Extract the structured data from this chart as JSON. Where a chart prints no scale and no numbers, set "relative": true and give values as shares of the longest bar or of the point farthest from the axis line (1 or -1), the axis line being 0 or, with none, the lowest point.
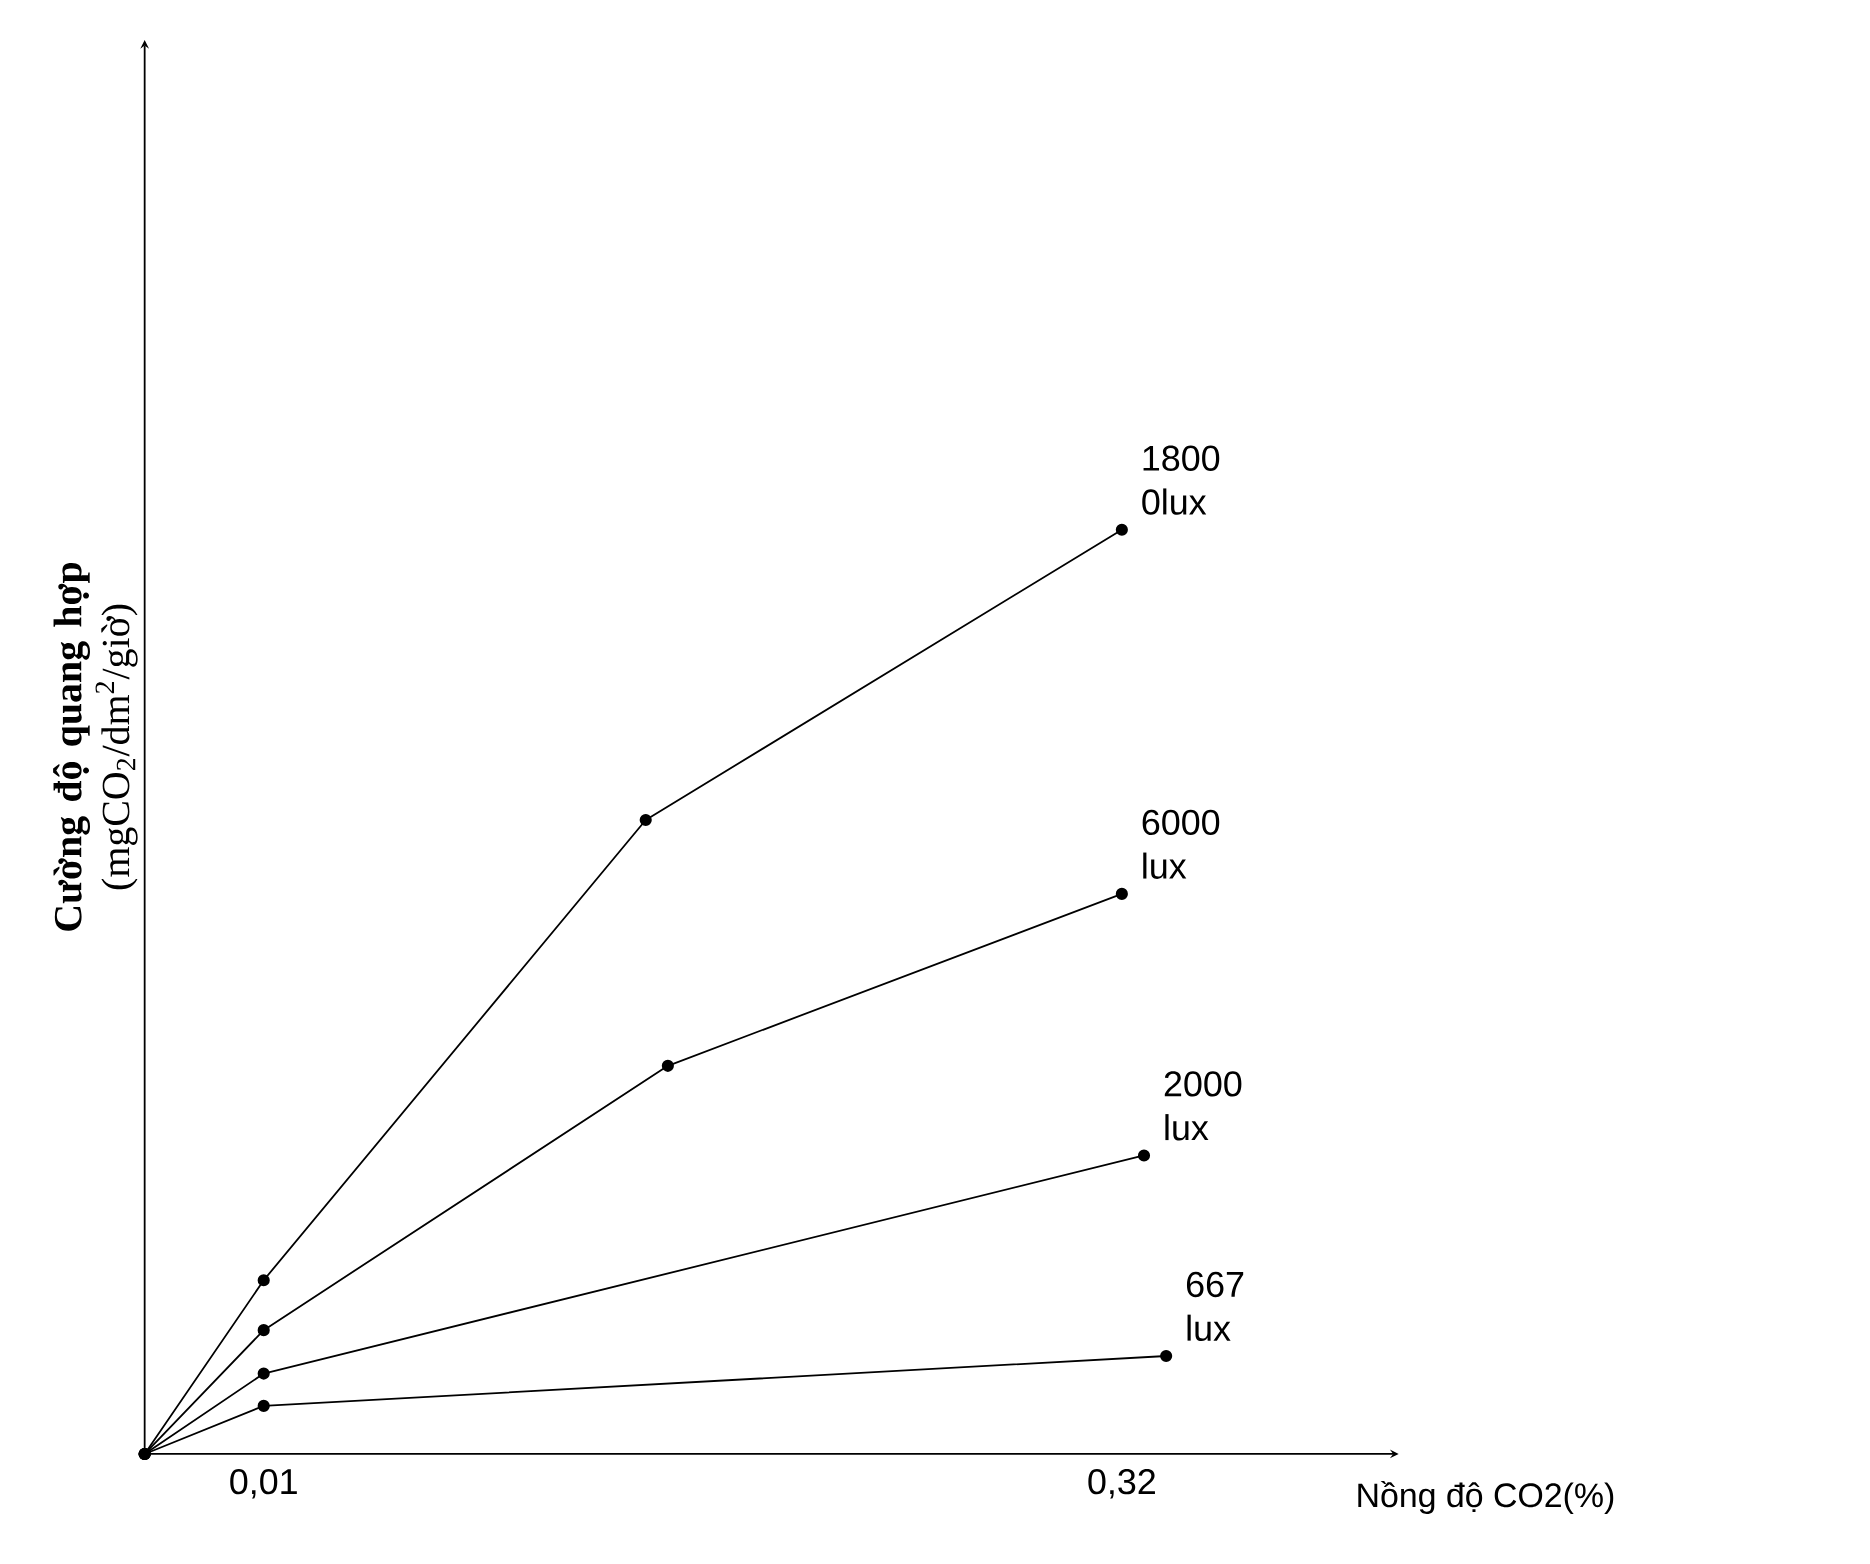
{
  "chart_data": {
    "type": "line",
    "relative": true,
    "ylabel": "**Cường độ quang hợp** (mgCO$_{2}$/dm$^{2}$/giờ)",
    "xlabel": "Nồng độ CO2(%)",
    "xlim": [
      -0.033,
      0.42
    ],
    "xticks": [
      {
        "value": 0.01,
        "label": "0,01"
      },
      {
        "value": 0.32,
        "label": "0,32"
      }
    ],
    "marker": "circle",
    "line_style": "solid",
    "legend": false,
    "grid": false,
    "series": [
      {
        "name": "1800 0lux",
        "color": "#000000",
        "x": [
          -0.033,
          0.01,
          0.148,
          0.32
        ],
        "values": [
          0,
          0.188,
          0.686,
          1
        ]
      },
      {
        "name": "6000 lux",
        "color": "#000000",
        "x": [
          -0.033,
          0.01,
          0.156,
          0.32
        ],
        "values": [
          0,
          0.134,
          0.42,
          0.606
        ]
      },
      {
        "name": "2000 lux",
        "color": "#000000",
        "x": [
          -0.033,
          0.01,
          0.328
        ],
        "values": [
          0,
          0.087,
          0.323
        ]
      },
      {
        "name": "667 lux",
        "color": "#000000",
        "x": [
          -0.033,
          0.01,
          0.336
        ],
        "values": [
          0,
          0.052,
          0.106
        ]
      }
    ]
  }
}
